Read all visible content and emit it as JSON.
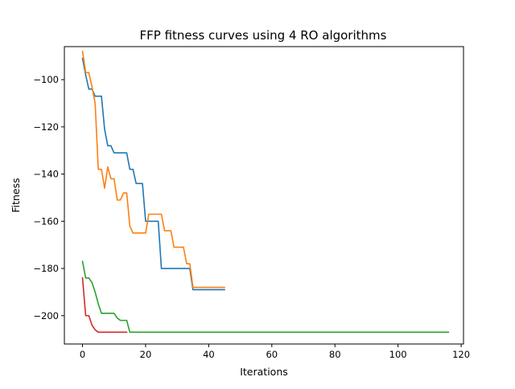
{
  "chart_data": {
    "type": "line",
    "title": "FFP fitness curves using 4 RO algorithms",
    "xlabel": "Iterations",
    "ylabel": "Fitness",
    "xlim": [
      -5.75,
      120.75
    ],
    "ylim": [
      -212,
      -86
    ],
    "xticks": [
      0,
      20,
      40,
      60,
      80,
      100,
      120
    ],
    "yticks": [
      -100,
      -120,
      -140,
      -160,
      -180,
      -200
    ],
    "xtick_labels": [
      "0",
      "20",
      "40",
      "60",
      "80",
      "100",
      "120"
    ],
    "ytick_labels": [
      "−100",
      "−120",
      "−140",
      "−160",
      "−180",
      "−200"
    ],
    "grid": false,
    "legend": false,
    "series": [
      {
        "color": "#1f77b4",
        "x": [
          0,
          1,
          2,
          3,
          4,
          5,
          6,
          7,
          8,
          9,
          10,
          11,
          12,
          13,
          14,
          15,
          16,
          17,
          18,
          19,
          20,
          21,
          22,
          23,
          24,
          25,
          26,
          27,
          28,
          29,
          30,
          31,
          32,
          33,
          34,
          35,
          36,
          37,
          38,
          39,
          40,
          41,
          42,
          43,
          44,
          45
        ],
        "y": [
          -91,
          -98,
          -104,
          -104,
          -107,
          -107,
          -107,
          -121,
          -128,
          -128,
          -131,
          -131,
          -131,
          -131,
          -131,
          -138,
          -138,
          -144,
          -144,
          -144,
          -160,
          -160,
          -160,
          -160,
          -160,
          -180,
          -180,
          -180,
          -180,
          -180,
          -180,
          -180,
          -180,
          -180,
          -180,
          -189,
          -189,
          -189,
          -189,
          -189,
          -189,
          -189,
          -189,
          -189,
          -189,
          -189
        ]
      },
      {
        "color": "#ff7f0e",
        "x": [
          0,
          1,
          2,
          3,
          4,
          5,
          6,
          7,
          8,
          9,
          10,
          11,
          12,
          13,
          14,
          15,
          16,
          17,
          18,
          19,
          20,
          21,
          22,
          23,
          24,
          25,
          26,
          27,
          28,
          29,
          30,
          31,
          32,
          33,
          34,
          35,
          36,
          37,
          38,
          39,
          40,
          41,
          42,
          43,
          44,
          45
        ],
        "y": [
          -88,
          -97,
          -97,
          -103,
          -110,
          -138,
          -138,
          -146,
          -137,
          -142,
          -142,
          -151,
          -151,
          -148,
          -148,
          -162,
          -165,
          -165,
          -165,
          -165,
          -165,
          -157,
          -157,
          -157,
          -157,
          -157,
          -164,
          -164,
          -164,
          -171,
          -171,
          -171,
          -171,
          -178,
          -178,
          -188,
          -188,
          -188,
          -188,
          -188,
          -188,
          -188,
          -188,
          -188,
          -188,
          -188
        ]
      },
      {
        "color": "#2ca02c",
        "x": [
          0,
          1,
          2,
          3,
          4,
          5,
          6,
          7,
          8,
          9,
          10,
          11,
          12,
          13,
          14,
          15,
          116
        ],
        "y": [
          -177,
          -184,
          -184,
          -186,
          -190,
          -195,
          -199,
          -199,
          -199,
          -199,
          -199,
          -201,
          -202,
          -202,
          -202,
          -207,
          -207
        ]
      },
      {
        "color": "#d62728",
        "x": [
          0,
          1,
          2,
          3,
          4,
          5,
          6,
          7,
          8,
          9,
          10,
          11,
          12,
          13,
          14
        ],
        "y": [
          -184,
          -200,
          -200,
          -204,
          -206,
          -207,
          -207,
          -207,
          -207,
          -207,
          -207,
          -207,
          -207,
          -207,
          -207
        ]
      }
    ]
  }
}
